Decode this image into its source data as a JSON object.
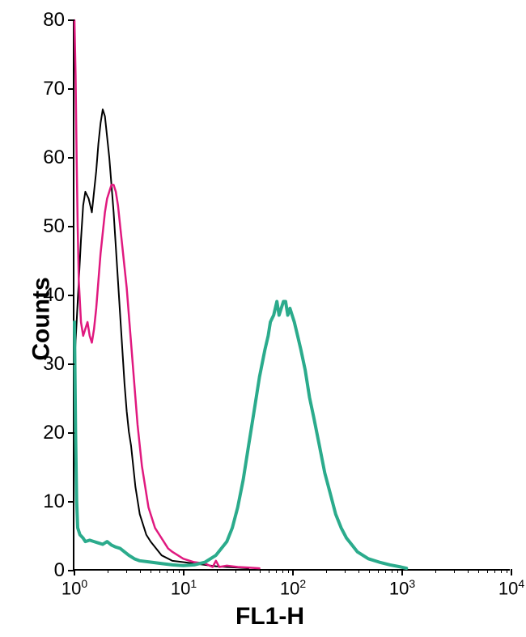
{
  "chart": {
    "type": "histogram",
    "background_color": "#ffffff",
    "axis_color": "#000000",
    "x_axis": {
      "label": "FL1-H",
      "scale": "log",
      "min_exp": 0,
      "max_exp": 4,
      "tick_exps": [
        0,
        1,
        2,
        3,
        4
      ],
      "label_fontsize": 30,
      "label_fontweight": "bold",
      "tick_fontsize": 22,
      "minor_ticks": true
    },
    "y_axis": {
      "label": "Counts",
      "scale": "linear",
      "min": 0,
      "max": 80,
      "tick_step": 10,
      "ticks": [
        0,
        10,
        20,
        30,
        40,
        50,
        60,
        70,
        80
      ],
      "label_fontsize": 30,
      "label_fontweight": "bold",
      "tick_fontsize": 24
    },
    "series": [
      {
        "name": "black",
        "color": "#000000",
        "line_width": 2,
        "points": [
          [
            0.0,
            30
          ],
          [
            0.02,
            36
          ],
          [
            0.04,
            42
          ],
          [
            0.06,
            48
          ],
          [
            0.08,
            53
          ],
          [
            0.1,
            55
          ],
          [
            0.13,
            54
          ],
          [
            0.16,
            52
          ],
          [
            0.18,
            55
          ],
          [
            0.2,
            58
          ],
          [
            0.22,
            62
          ],
          [
            0.24,
            65
          ],
          [
            0.26,
            67
          ],
          [
            0.28,
            66
          ],
          [
            0.3,
            63
          ],
          [
            0.32,
            60
          ],
          [
            0.34,
            56
          ],
          [
            0.36,
            52
          ],
          [
            0.38,
            47
          ],
          [
            0.4,
            42
          ],
          [
            0.42,
            37
          ],
          [
            0.44,
            32
          ],
          [
            0.46,
            27
          ],
          [
            0.48,
            23
          ],
          [
            0.5,
            20
          ],
          [
            0.52,
            18
          ],
          [
            0.54,
            15
          ],
          [
            0.56,
            12
          ],
          [
            0.58,
            10
          ],
          [
            0.6,
            8
          ],
          [
            0.62,
            7
          ],
          [
            0.66,
            5
          ],
          [
            0.7,
            4
          ],
          [
            0.75,
            3
          ],
          [
            0.8,
            2
          ],
          [
            0.9,
            1.2
          ],
          [
            1.0,
            1
          ],
          [
            1.1,
            0.8
          ],
          [
            1.2,
            0.6
          ],
          [
            1.3,
            0.4
          ],
          [
            1.4,
            0.3
          ],
          [
            1.5,
            0.2
          ],
          [
            1.6,
            0.1
          ]
        ]
      },
      {
        "name": "magenta",
        "color": "#e0197f",
        "line_width": 2.5,
        "points": [
          [
            0.0,
            80
          ],
          [
            0.01,
            72
          ],
          [
            0.02,
            60
          ],
          [
            0.03,
            50
          ],
          [
            0.04,
            42
          ],
          [
            0.06,
            36
          ],
          [
            0.08,
            34
          ],
          [
            0.1,
            35
          ],
          [
            0.12,
            36
          ],
          [
            0.14,
            34
          ],
          [
            0.16,
            33
          ],
          [
            0.18,
            35
          ],
          [
            0.2,
            38
          ],
          [
            0.22,
            42
          ],
          [
            0.24,
            46
          ],
          [
            0.26,
            49
          ],
          [
            0.28,
            52
          ],
          [
            0.3,
            54
          ],
          [
            0.32,
            55
          ],
          [
            0.34,
            56
          ],
          [
            0.36,
            56
          ],
          [
            0.38,
            55
          ],
          [
            0.4,
            53
          ],
          [
            0.42,
            50
          ],
          [
            0.44,
            47
          ],
          [
            0.46,
            44
          ],
          [
            0.48,
            41
          ],
          [
            0.5,
            37
          ],
          [
            0.52,
            33
          ],
          [
            0.54,
            29
          ],
          [
            0.56,
            25
          ],
          [
            0.58,
            21
          ],
          [
            0.6,
            18
          ],
          [
            0.62,
            15
          ],
          [
            0.64,
            13
          ],
          [
            0.66,
            11
          ],
          [
            0.68,
            9
          ],
          [
            0.7,
            8
          ],
          [
            0.74,
            6
          ],
          [
            0.78,
            5
          ],
          [
            0.82,
            4
          ],
          [
            0.86,
            3
          ],
          [
            0.9,
            2.5
          ],
          [
            0.95,
            2
          ],
          [
            1.0,
            1.5
          ],
          [
            1.1,
            1
          ],
          [
            1.2,
            0.8
          ],
          [
            1.27,
            0.3
          ],
          [
            1.3,
            1.2
          ],
          [
            1.33,
            0.3
          ],
          [
            1.4,
            0.5
          ],
          [
            1.5,
            0.3
          ],
          [
            1.6,
            0.2
          ],
          [
            1.7,
            0.1
          ]
        ]
      },
      {
        "name": "teal",
        "color": "#2bab8c",
        "line_width": 4,
        "points": [
          [
            0.0,
            36
          ],
          [
            0.01,
            20
          ],
          [
            0.02,
            10
          ],
          [
            0.03,
            6
          ],
          [
            0.05,
            5
          ],
          [
            0.08,
            4.5
          ],
          [
            0.1,
            4
          ],
          [
            0.14,
            4.2
          ],
          [
            0.18,
            4
          ],
          [
            0.22,
            3.8
          ],
          [
            0.26,
            3.6
          ],
          [
            0.3,
            4.0
          ],
          [
            0.34,
            3.5
          ],
          [
            0.38,
            3.2
          ],
          [
            0.42,
            3
          ],
          [
            0.46,
            2.5
          ],
          [
            0.5,
            2
          ],
          [
            0.55,
            1.5
          ],
          [
            0.6,
            1.2
          ],
          [
            0.7,
            1
          ],
          [
            0.8,
            0.8
          ],
          [
            0.9,
            0.6
          ],
          [
            1.0,
            0.5
          ],
          [
            1.1,
            0.6
          ],
          [
            1.2,
            1
          ],
          [
            1.3,
            2
          ],
          [
            1.4,
            4
          ],
          [
            1.45,
            6
          ],
          [
            1.5,
            9
          ],
          [
            1.55,
            13
          ],
          [
            1.6,
            18
          ],
          [
            1.65,
            23
          ],
          [
            1.7,
            28
          ],
          [
            1.75,
            32
          ],
          [
            1.78,
            34
          ],
          [
            1.8,
            36
          ],
          [
            1.83,
            37
          ],
          [
            1.86,
            39
          ],
          [
            1.88,
            37
          ],
          [
            1.9,
            38
          ],
          [
            1.92,
            39
          ],
          [
            1.94,
            39
          ],
          [
            1.96,
            37
          ],
          [
            1.98,
            38
          ],
          [
            2.0,
            37
          ],
          [
            2.02,
            36
          ],
          [
            2.05,
            34
          ],
          [
            2.08,
            32
          ],
          [
            2.12,
            29
          ],
          [
            2.16,
            25
          ],
          [
            2.2,
            22
          ],
          [
            2.25,
            18
          ],
          [
            2.3,
            14
          ],
          [
            2.35,
            11
          ],
          [
            2.4,
            8
          ],
          [
            2.45,
            6
          ],
          [
            2.5,
            4.5
          ],
          [
            2.55,
            3.5
          ],
          [
            2.6,
            2.5
          ],
          [
            2.7,
            1.5
          ],
          [
            2.8,
            1
          ],
          [
            2.9,
            0.6
          ],
          [
            3.0,
            0.3
          ],
          [
            3.05,
            0.1
          ]
        ]
      }
    ]
  }
}
